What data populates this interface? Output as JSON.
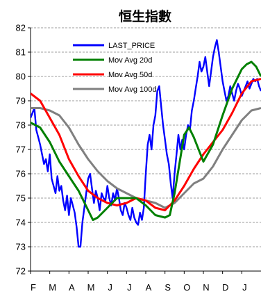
{
  "chart_data": {
    "type": "line",
    "title": "恒生指數",
    "xlabel": "",
    "ylabel": "",
    "ylim": [
      72,
      82
    ],
    "yticks": [
      72,
      73,
      74,
      75,
      76,
      77,
      78,
      79,
      80,
      81,
      82
    ],
    "x_tick_labels": [
      "F",
      "M",
      "A",
      "M",
      "J",
      "J",
      "A",
      "S",
      "O",
      "N",
      "D",
      "J"
    ],
    "x_range": [
      0,
      12
    ],
    "grid": "horizontal-dashed",
    "legend_position": "top-inside",
    "series": [
      {
        "name": "LAST_PRICE",
        "color": "#0000ff",
        "x": [
          0,
          0.1,
          0.2,
          0.3,
          0.4,
          0.5,
          0.6,
          0.7,
          0.8,
          0.9,
          1,
          1.1,
          1.2,
          1.3,
          1.4,
          1.5,
          1.6,
          1.7,
          1.8,
          1.9,
          2,
          2.1,
          2.2,
          2.3,
          2.4,
          2.5,
          2.6,
          2.7,
          2.8,
          2.9,
          3,
          3.1,
          3.2,
          3.3,
          3.4,
          3.5,
          3.6,
          3.7,
          3.8,
          3.9,
          4,
          4.1,
          4.2,
          4.3,
          4.4,
          4.5,
          4.6,
          4.7,
          4.8,
          4.9,
          5,
          5.1,
          5.2,
          5.3,
          5.4,
          5.5,
          5.6,
          5.7,
          5.8,
          5.9,
          6,
          6.1,
          6.2,
          6.3,
          6.4,
          6.5,
          6.6,
          6.7,
          6.8,
          6.9,
          7,
          7.1,
          7.2,
          7.3,
          7.4,
          7.5,
          7.6,
          7.7,
          7.8,
          7.9,
          8,
          8.1,
          8.2,
          8.3,
          8.4,
          8.5,
          8.6,
          8.7,
          8.8,
          8.9,
          9,
          9.1,
          9.2,
          9.3,
          9.4,
          9.5,
          9.6,
          9.7,
          9.8,
          9.9,
          10,
          10.1,
          10.2,
          10.3,
          10.4,
          10.5,
          10.6,
          10.7,
          10.8,
          10.9,
          11,
          11.1,
          11.2,
          11.3,
          11.4,
          11.5,
          11.6,
          11.7,
          11.8,
          11.9,
          12
        ],
        "values": [
          78.3,
          78.5,
          78.7,
          77.8,
          77.5,
          77.2,
          76.8,
          76.4,
          76.6,
          76.1,
          76.8,
          75.8,
          75.5,
          75.2,
          75.9,
          75.3,
          75.5,
          74.9,
          74.5,
          75.1,
          74.3,
          75.0,
          74.7,
          74.4,
          73.8,
          73.0,
          73.0,
          74.0,
          74.6,
          75.2,
          75.8,
          76.0,
          75.4,
          74.8,
          75.3,
          75.0,
          74.5,
          75.2,
          75.0,
          74.9,
          75.5,
          75.0,
          74.7,
          75.2,
          74.9,
          75.4,
          75.0,
          74.5,
          74.3,
          74.8,
          74.6,
          74.3,
          74.1,
          74.6,
          74.2,
          74.0,
          73.9,
          74.4,
          74.1,
          74.6,
          76.0,
          77.2,
          77.6,
          77.0,
          78.0,
          78.4,
          79.4,
          79.6,
          78.8,
          78.0,
          77.4,
          76.8,
          76.4,
          75.6,
          75.0,
          76.0,
          76.8,
          77.6,
          77.0,
          77.4,
          77.0,
          77.6,
          78.0,
          77.8,
          78.6,
          79.0,
          79.5,
          80.0,
          80.6,
          80.2,
          80.4,
          80.8,
          80.2,
          79.6,
          80.2,
          80.8,
          81.2,
          81.5,
          81.0,
          80.4,
          79.8,
          79.4,
          79.0,
          79.2,
          79.6,
          79.3,
          79.0,
          79.4,
          79.7,
          79.5,
          79.2,
          79.4,
          79.6,
          79.8,
          79.5,
          79.7,
          79.9,
          79.8,
          79.9,
          79.6,
          79.4
        ],
        "stroke_width": 2.4
      },
      {
        "name": "Mov Avg 20d",
        "color": "#008000",
        "x": [
          0,
          0.5,
          1,
          1.5,
          2,
          2.5,
          3,
          3.25,
          3.5,
          4,
          4.5,
          5,
          5.5,
          6,
          6.5,
          7,
          7.25,
          7.5,
          8,
          8.25,
          8.5,
          9,
          9.5,
          10,
          10.5,
          11,
          11.25,
          11.5,
          11.75,
          12
        ],
        "values": [
          78.1,
          77.9,
          77.3,
          76.5,
          75.9,
          75.3,
          74.5,
          74.1,
          74.2,
          74.6,
          75.0,
          75.0,
          75.0,
          74.7,
          74.3,
          74.2,
          74.3,
          75.2,
          77.6,
          77.9,
          77.5,
          76.5,
          77.2,
          78.4,
          79.5,
          80.3,
          80.5,
          80.6,
          80.4,
          80.0
        ],
        "stroke_width": 3
      },
      {
        "name": "Mov Avg 50d",
        "color": "#ff0000",
        "x": [
          0,
          0.5,
          1,
          1.5,
          2,
          2.5,
          3,
          3.5,
          4,
          4.5,
          5,
          5.5,
          6,
          6.5,
          7,
          7.5,
          8,
          8.5,
          9,
          9.5,
          10,
          10.5,
          11,
          11.5,
          12
        ],
        "values": [
          79.3,
          79.0,
          78.3,
          77.6,
          76.6,
          75.9,
          75.3,
          75.0,
          74.8,
          74.7,
          74.8,
          75.0,
          74.9,
          74.6,
          74.5,
          74.9,
          75.5,
          76.2,
          76.8,
          77.3,
          77.8,
          78.5,
          79.3,
          79.8,
          79.9
        ],
        "stroke_width": 3
      },
      {
        "name": "Mov Avg 100d",
        "color": "#808080",
        "x": [
          0,
          0.5,
          1,
          1.5,
          2,
          2.5,
          3,
          3.5,
          4,
          4.5,
          5,
          5.5,
          6,
          6.5,
          7,
          7.5,
          8,
          8.5,
          9,
          9.5,
          10,
          10.5,
          11,
          11.5,
          12
        ],
        "values": [
          78.7,
          78.7,
          78.6,
          78.4,
          77.9,
          77.2,
          76.6,
          76.1,
          75.7,
          75.4,
          75.2,
          75.0,
          74.9,
          74.8,
          74.6,
          74.8,
          75.2,
          75.6,
          75.8,
          76.3,
          77.0,
          77.6,
          78.2,
          78.6,
          78.7
        ],
        "stroke_width": 3
      }
    ]
  }
}
